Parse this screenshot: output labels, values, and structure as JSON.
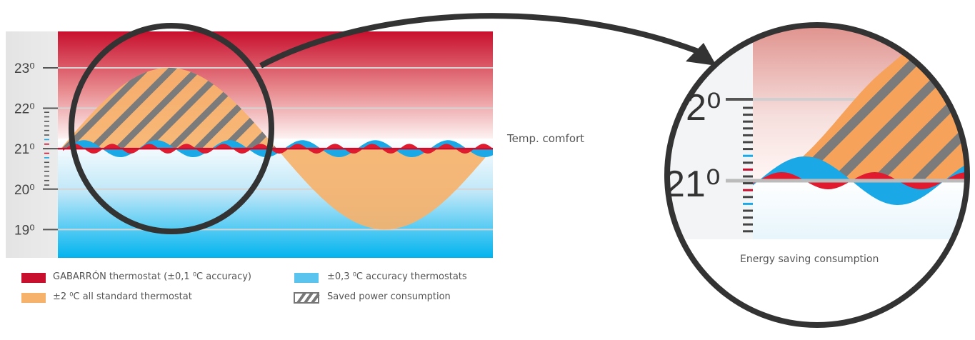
{
  "chart_data": {
    "type": "line",
    "title": "",
    "ylabel": "",
    "ylim": [
      18.3,
      23.9
    ],
    "y_ticks": [
      "23⁰",
      "22⁰",
      "21⁰",
      "20⁰",
      "19⁰"
    ],
    "y_tick_values": [
      23,
      22,
      21,
      20,
      19
    ],
    "comfort_value": 21,
    "comfort_label": "Temp. comfort",
    "series": [
      {
        "name": "GABARRÓN thermostat (±0,1 ⁰C accuracy)",
        "amplitude": 0.1,
        "color": "#e01b2f",
        "legend_color": "#c8102e"
      },
      {
        "name": "±0,3 ⁰C accuracy thermostats",
        "amplitude": 0.3,
        "color": "#1aa9e6",
        "legend_color": "#5bc4ee"
      },
      {
        "name": "±2 ⁰C all standard thermostat",
        "amplitude": 2,
        "color": "#f6b26b",
        "legend_color": "#f6b26b"
      },
      {
        "name": "Saved power consumption",
        "pattern": "hatch",
        "color": "#7a7a7a"
      }
    ],
    "zoom_ticks": [
      "2⁰",
      "21⁰"
    ],
    "zoom_caption": "Energy saving consumption"
  }
}
